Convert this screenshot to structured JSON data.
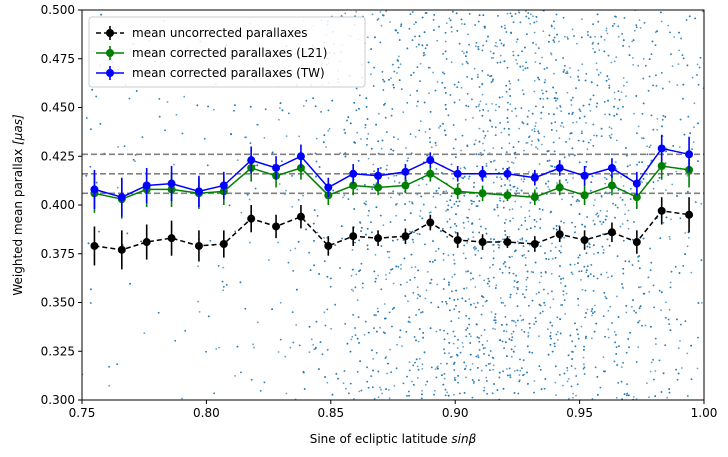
{
  "chart_data": {
    "type": "line",
    "xlabel": "Sine of ecliptic latitude sinβ",
    "xlabel_plain": "Sine of ecliptic latitude ",
    "xlabel_italic": "sinβ",
    "ylabel_plain": "Weighted mean parallax ",
    "ylabel_italic": "[μas]",
    "xlim": [
      0.75,
      1.0
    ],
    "ylim": [
      0.3,
      0.5
    ],
    "xticks": [
      0.75,
      0.8,
      0.85,
      0.9,
      0.95,
      1.0
    ],
    "xtick_labels": [
      "0.75",
      "0.80",
      "0.85",
      "0.90",
      "0.95",
      "1.00"
    ],
    "yticks": [
      0.3,
      0.325,
      0.35,
      0.375,
      0.4,
      0.425,
      0.45,
      0.475,
      0.5
    ],
    "ytick_labels": [
      "0.300",
      "0.325",
      "0.350",
      "0.375",
      "0.400",
      "0.425",
      "0.450",
      "0.475",
      "0.500"
    ],
    "hlines": [
      0.406,
      0.416,
      0.426
    ],
    "hline_color": "#808080",
    "legend_position": "top-left",
    "x": [
      0.755,
      0.766,
      0.776,
      0.786,
      0.797,
      0.807,
      0.818,
      0.828,
      0.838,
      0.849,
      0.859,
      0.869,
      0.88,
      0.89,
      0.901,
      0.911,
      0.921,
      0.932,
      0.942,
      0.952,
      0.963,
      0.973,
      0.983,
      0.994
    ],
    "series": [
      {
        "name": "mean uncorrected parallaxes",
        "color": "#000000",
        "linestyle": "dashed",
        "values": [
          0.379,
          0.377,
          0.381,
          0.383,
          0.379,
          0.38,
          0.393,
          0.389,
          0.394,
          0.379,
          0.384,
          0.383,
          0.384,
          0.391,
          0.382,
          0.381,
          0.381,
          0.38,
          0.385,
          0.382,
          0.386,
          0.381,
          0.397,
          0.395
        ],
        "errors": [
          0.01,
          0.01,
          0.009,
          0.009,
          0.008,
          0.007,
          0.007,
          0.006,
          0.006,
          0.005,
          0.005,
          0.004,
          0.004,
          0.004,
          0.004,
          0.004,
          0.003,
          0.004,
          0.004,
          0.005,
          0.005,
          0.006,
          0.007,
          0.009
        ]
      },
      {
        "name": "mean corrected parallaxes (L21)",
        "color": "#008000",
        "linestyle": "solid",
        "values": [
          0.406,
          0.403,
          0.408,
          0.408,
          0.406,
          0.407,
          0.419,
          0.415,
          0.419,
          0.405,
          0.41,
          0.409,
          0.41,
          0.416,
          0.407,
          0.406,
          0.405,
          0.404,
          0.409,
          0.405,
          0.41,
          0.404,
          0.42,
          0.418
        ],
        "errors": [
          0.01,
          0.01,
          0.009,
          0.009,
          0.008,
          0.007,
          0.007,
          0.006,
          0.006,
          0.005,
          0.005,
          0.004,
          0.004,
          0.004,
          0.004,
          0.004,
          0.003,
          0.004,
          0.004,
          0.005,
          0.005,
          0.006,
          0.007,
          0.009
        ]
      },
      {
        "name": "mean corrected parallaxes (TW)",
        "color": "#0000ff",
        "linestyle": "solid",
        "values": [
          0.408,
          0.404,
          0.41,
          0.411,
          0.407,
          0.41,
          0.423,
          0.419,
          0.425,
          0.409,
          0.416,
          0.415,
          0.417,
          0.423,
          0.416,
          0.416,
          0.416,
          0.414,
          0.419,
          0.415,
          0.419,
          0.411,
          0.429,
          0.426
        ],
        "errors": [
          0.01,
          0.01,
          0.009,
          0.009,
          0.008,
          0.007,
          0.007,
          0.006,
          0.006,
          0.005,
          0.005,
          0.004,
          0.004,
          0.004,
          0.004,
          0.004,
          0.003,
          0.004,
          0.004,
          0.005,
          0.005,
          0.006,
          0.007,
          0.009
        ]
      }
    ],
    "background_scatter": {
      "color": "#1f77b4",
      "count": 4200,
      "density_peak_x": 0.92
    }
  }
}
